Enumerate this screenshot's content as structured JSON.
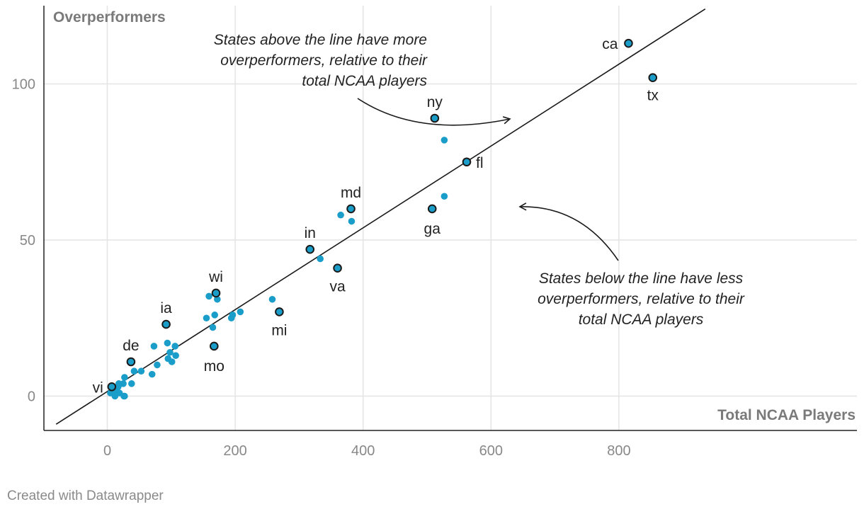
{
  "chart_data": {
    "type": "scatter",
    "xlabel": "Total NCAA Players",
    "ylabel": "Overperformers",
    "xlim": [
      -80,
      935
    ],
    "ylim": [
      -11,
      124
    ],
    "x_ticks": [
      0,
      200,
      400,
      600,
      800
    ],
    "y_ticks": [
      0,
      50,
      100
    ],
    "grid": true,
    "trend_line": {
      "from": [
        -80,
        -9
      ],
      "to": [
        935,
        124
      ]
    },
    "colors": {
      "point": "#1a9ec9",
      "labeled_point_stroke": "#1a1a1a",
      "line": "#1a1a1a",
      "grid": "#e4e4e4"
    },
    "labeled_points": [
      {
        "label": "ca",
        "x": 815,
        "y": 113
      },
      {
        "label": "tx",
        "x": 853,
        "y": 102
      },
      {
        "label": "ny",
        "x": 512,
        "y": 89
      },
      {
        "label": "fl",
        "x": 562,
        "y": 75
      },
      {
        "label": "ga",
        "x": 508,
        "y": 60
      },
      {
        "label": "md",
        "x": 381,
        "y": 60
      },
      {
        "label": "in",
        "x": 317,
        "y": 47
      },
      {
        "label": "va",
        "x": 360,
        "y": 41
      },
      {
        "label": "wi",
        "x": 170,
        "y": 33
      },
      {
        "label": "mi",
        "x": 269,
        "y": 27
      },
      {
        "label": "ia",
        "x": 92,
        "y": 23
      },
      {
        "label": "mo",
        "x": 167,
        "y": 16
      },
      {
        "label": "de",
        "x": 37,
        "y": 11
      },
      {
        "label": "vi",
        "x": 7,
        "y": 3
      }
    ],
    "points": [
      [
        527,
        82
      ],
      [
        527,
        64
      ],
      [
        365,
        58
      ],
      [
        382,
        56
      ],
      [
        333,
        44
      ],
      [
        159,
        32
      ],
      [
        172,
        31
      ],
      [
        258,
        31
      ],
      [
        208,
        27
      ],
      [
        196,
        26
      ],
      [
        194,
        25
      ],
      [
        168,
        26
      ],
      [
        155,
        25
      ],
      [
        165,
        22
      ],
      [
        73,
        16
      ],
      [
        94,
        17
      ],
      [
        106,
        16
      ],
      [
        98,
        14
      ],
      [
        107,
        13
      ],
      [
        101,
        11
      ],
      [
        95,
        12
      ],
      [
        78,
        10
      ],
      [
        53,
        8
      ],
      [
        42,
        8
      ],
      [
        70,
        7
      ],
      [
        27,
        6
      ],
      [
        38,
        4
      ],
      [
        25,
        4
      ],
      [
        18,
        4
      ],
      [
        17,
        3
      ],
      [
        10,
        2
      ],
      [
        14,
        2
      ],
      [
        5,
        1
      ],
      [
        19,
        1
      ],
      [
        12,
        1
      ],
      [
        27,
        0
      ],
      [
        12,
        0
      ],
      [
        26,
        0
      ]
    ],
    "annotations": [
      {
        "lines": [
          "States above the line have more",
          "overperformers, relative to their",
          "total NCAA players"
        ]
      },
      {
        "lines": [
          "States below the line have less",
          "overperformers, relative to their",
          "total NCAA players"
        ]
      }
    ]
  },
  "footer": {
    "credit": "Created with Datawrapper"
  }
}
